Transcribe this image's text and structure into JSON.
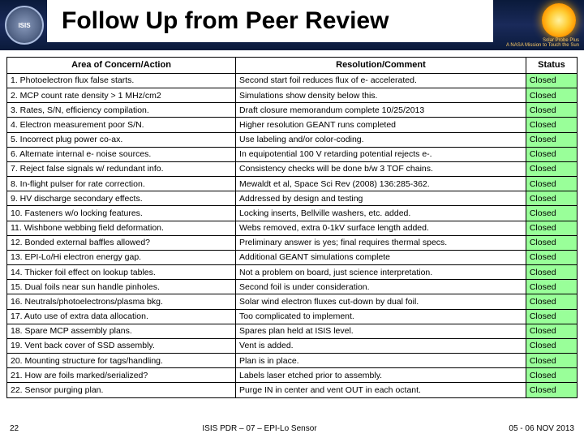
{
  "header": {
    "logo_text": "ISIS",
    "title": "Follow Up from Peer Review",
    "subline1": "Solar Probe Plus",
    "subline2": "A NASA Mission to Touch the Sun"
  },
  "table": {
    "headers": {
      "area": "Area of Concern/Action",
      "resolution": "Resolution/Comment",
      "status": "Status"
    },
    "status_color": "#99ff99",
    "rows": [
      {
        "n": "1",
        "area": "Photoelectron flux false starts.",
        "res": "Second start foil reduces flux of e- accelerated.",
        "status": "Closed"
      },
      {
        "n": "2",
        "area": "MCP count rate density > 1 MHz/cm2",
        "res": "Simulations show density below this.",
        "status": "Closed"
      },
      {
        "n": "3",
        "area": "Rates, S/N, efficiency compilation.",
        "res": "Draft closure memorandum complete 10/25/2013",
        "status": "Closed"
      },
      {
        "n": "4",
        "area": "Electron measurement poor S/N.",
        "res": "Higher resolution GEANT runs completed",
        "status": "Closed"
      },
      {
        "n": "5",
        "area": "Incorrect plug power co-ax.",
        "res": "Use labeling and/or color-coding.",
        "status": "Closed"
      },
      {
        "n": "6",
        "area": "Alternate internal e- noise sources.",
        "res": "In equipotential 100 V retarding potential rejects e-.",
        "status": "Closed"
      },
      {
        "n": "7",
        "area": "Reject false signals w/ redundant info.",
        "res": "Consistency checks will be done b/w 3 TOF chains.",
        "status": "Closed"
      },
      {
        "n": "8",
        "area": "In-flight pulser for rate correction.",
        "res": "Mewaldt et al, Space Sci Rev (2008) 136:285-362.",
        "status": "Closed"
      },
      {
        "n": "9",
        "area": "HV discharge secondary effects.",
        "res": "Addressed by design and testing",
        "status": "Closed"
      },
      {
        "n": "10",
        "area": "Fasteners w/o locking features.",
        "res": "Locking inserts, Bellville washers, etc. added.",
        "status": "Closed"
      },
      {
        "n": "11",
        "area": "Wishbone webbing field deformation.",
        "res": "Webs removed, extra 0-1kV surface length added.",
        "status": "Closed"
      },
      {
        "n": "12",
        "area": "Bonded external baffles allowed?",
        "res": "Preliminary answer is yes; final requires thermal specs.",
        "status": "Closed"
      },
      {
        "n": "13",
        "area": "EPI-Lo/Hi electron energy gap.",
        "res": "Additional GEANT simulations complete",
        "status": "Closed"
      },
      {
        "n": "14",
        "area": "Thicker foil effect on lookup tables.",
        "res": "Not a problem on board, just science interpretation.",
        "status": "Closed"
      },
      {
        "n": "15",
        "area": "Dual foils near sun handle pinholes.",
        "res": "Second foil is under consideration.",
        "status": "Closed"
      },
      {
        "n": "16",
        "area": "Neutrals/photoelectrons/plasma bkg.",
        "res": "Solar wind electron fluxes cut-down by dual foil.",
        "status": "Closed"
      },
      {
        "n": "17",
        "area": "Auto use of extra data allocation.",
        "res": "Too complicated to implement.",
        "status": "Closed"
      },
      {
        "n": "18",
        "area": "Spare MCP assembly plans.",
        "res": "Spares plan held at ISIS level.",
        "status": "Closed"
      },
      {
        "n": "19",
        "area": "Vent back cover of SSD assembly.",
        "res": "Vent is added.",
        "status": "Closed"
      },
      {
        "n": "20",
        "area": "Mounting structure for tags/handling.",
        "res": "Plan is in place.",
        "status": "Closed"
      },
      {
        "n": "21",
        "area": "How are foils marked/serialized?",
        "res": "Labels laser etched prior to assembly.",
        "status": "Closed"
      },
      {
        "n": "22",
        "area": "Sensor purging plan.",
        "res": "Purge IN in center and vent OUT in each octant.",
        "status": "Closed"
      }
    ]
  },
  "footer": {
    "page": "22",
    "center": "ISIS PDR – 07 – EPI-Lo Sensor",
    "date": "05 - 06 NOV 2013"
  }
}
